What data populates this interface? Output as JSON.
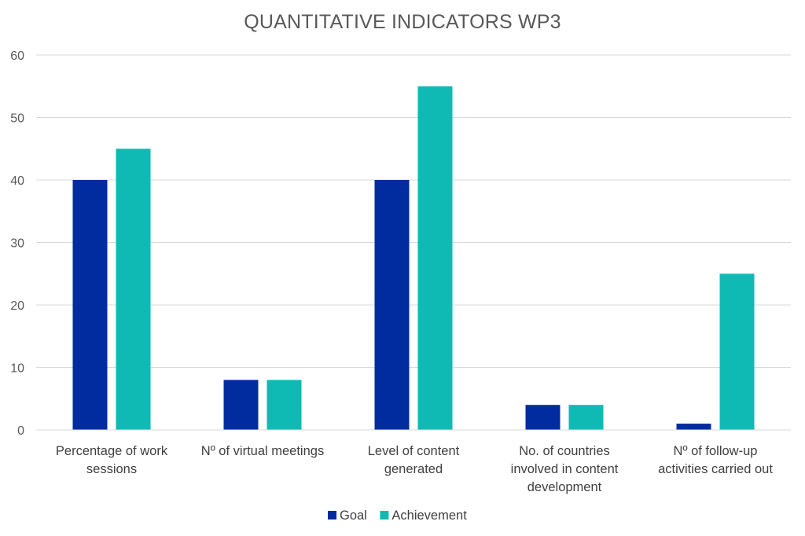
{
  "chart_data": {
    "type": "bar",
    "title": "QUANTITATIVE INDICATORS WP3",
    "xlabel": "",
    "ylabel": "",
    "ylim": [
      0,
      60
    ],
    "yticks": [
      0,
      10,
      20,
      30,
      40,
      50,
      60
    ],
    "grid": true,
    "legend_position": "bottom",
    "categories": [
      [
        "Percentage of work",
        "sessions"
      ],
      [
        "Nº of virtual meetings"
      ],
      [
        "Level of content",
        "generated"
      ],
      [
        "No. of countries",
        "involved in content",
        "development"
      ],
      [
        "Nº of follow-up",
        "activities carried out"
      ]
    ],
    "series": [
      {
        "name": "Goal",
        "color": "#002ca0",
        "values": [
          40,
          8,
          40,
          4,
          1
        ]
      },
      {
        "name": "Achievement",
        "color": "#0fbab5",
        "values": [
          45,
          8,
          55,
          4,
          25
        ]
      }
    ]
  }
}
